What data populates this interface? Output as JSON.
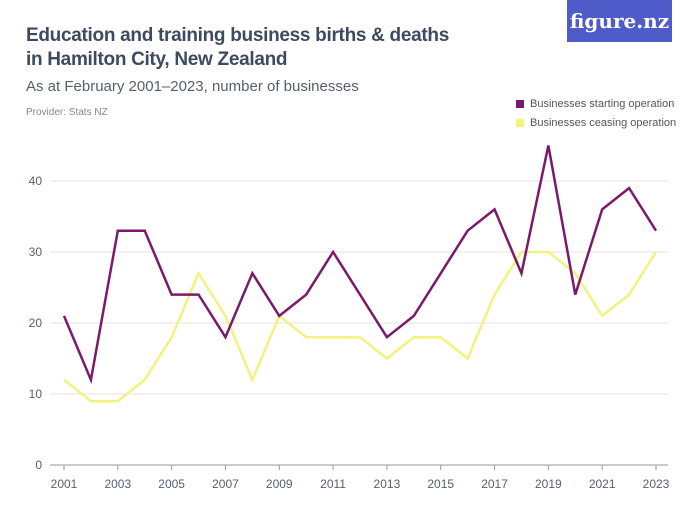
{
  "title_line1": "Education and training business births & deaths",
  "title_line2": "in Hamilton City, New Zealand",
  "subtitle": "As at February 2001–2023, number of businesses",
  "provider": "Provider: Stats NZ",
  "logo": "figure.nz",
  "colors": {
    "starting": "#7b1a6b",
    "ceasing": "#f3f27e",
    "logo_bg": "#4f5bc9"
  },
  "chart_data": {
    "type": "line",
    "x": [
      2001,
      2002,
      2003,
      2004,
      2005,
      2006,
      2007,
      2008,
      2009,
      2010,
      2011,
      2012,
      2013,
      2014,
      2015,
      2016,
      2017,
      2018,
      2019,
      2020,
      2021,
      2022,
      2023
    ],
    "xticks": [
      "2001",
      "2003",
      "2005",
      "2007",
      "2009",
      "2011",
      "2013",
      "2015",
      "2017",
      "2019",
      "2021",
      "2023"
    ],
    "yticks": [
      "0",
      "10",
      "20",
      "30",
      "40"
    ],
    "ylim": [
      0,
      45
    ],
    "grid": true,
    "legend_position": "top-right",
    "series": [
      {
        "name": "Businesses starting operation",
        "values": [
          21,
          12,
          33,
          33,
          24,
          24,
          18,
          27,
          21,
          24,
          30,
          24,
          18,
          21,
          27,
          33,
          36,
          27,
          45,
          24,
          36,
          39,
          33
        ]
      },
      {
        "name": "Businesses ceasing operation",
        "values": [
          12,
          9,
          9,
          12,
          18,
          27,
          21,
          12,
          21,
          18,
          18,
          18,
          15,
          18,
          18,
          15,
          24,
          30,
          30,
          27,
          21,
          24,
          30
        ]
      }
    ]
  }
}
